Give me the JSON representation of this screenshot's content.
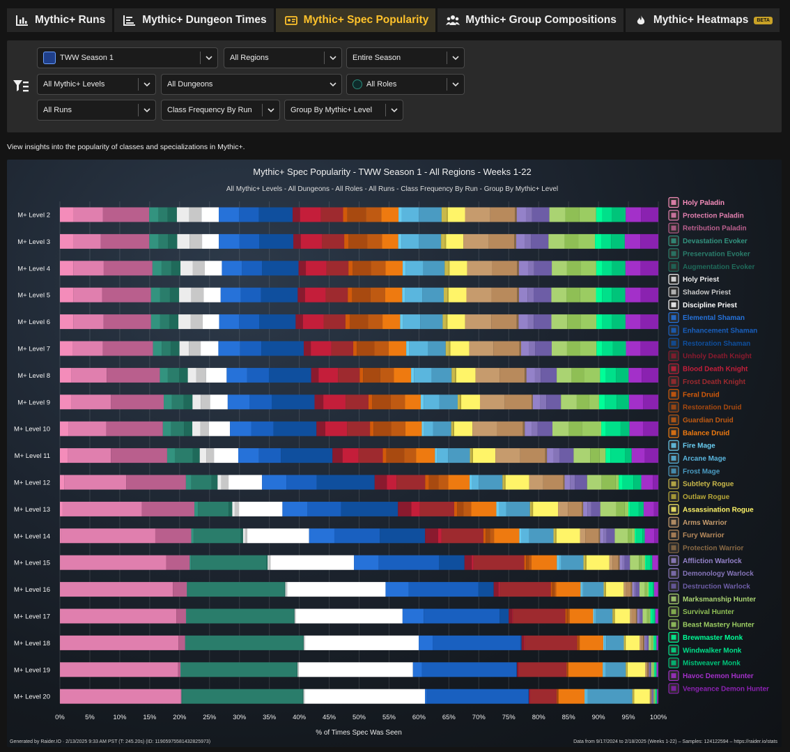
{
  "tabs": [
    {
      "label": "Mythic+ Runs",
      "icon": "bar-chart-icon",
      "active": false
    },
    {
      "label": "Mythic+ Dungeon Times",
      "icon": "list-chart-icon",
      "active": false
    },
    {
      "label": "Mythic+ Spec Popularity",
      "icon": "popularity-icon",
      "active": true
    },
    {
      "label": "Mythic+ Group Compositions",
      "icon": "group-icon",
      "active": false
    },
    {
      "label": "Mythic+ Heatmaps",
      "icon": "flame-icon",
      "active": false,
      "badge": "BETA"
    }
  ],
  "filters": {
    "season": "TWW Season 1",
    "regions": "All Regions",
    "period": "Entire Season",
    "levels": "All Mythic+ Levels",
    "dungeons": "All Dungeons",
    "roles": "All Roles",
    "runs": "All Runs",
    "frequency": "Class Frequency By Run",
    "grouping": "Group By Mythic+ Level"
  },
  "description": "View insights into the popularity of classes and specializations in Mythic+.",
  "footer": {
    "generated": "Generated by Raider.IO · 2/13/2025 9:33 AM PST (T: 245.20s) (ID: 11905975581432825973)",
    "source": "Data from 9/17/2024 to 2/18/2025 (Weeks 1-22) – Samples: 124122594 – https://raider.io/stats"
  },
  "chart_data": {
    "type": "bar",
    "orientation": "horizontal",
    "stacked": true,
    "title": "Mythic+ Spec Popularity - TWW Season 1 - All Regions - Weeks 1-22",
    "subtitle": "All Mythic+ Levels - All Dungeons - All Roles - All Runs - Class Frequency By Run - Group By Mythic+ Level",
    "xlabel": "% of Times Spec Was Seen",
    "xlim": [
      0,
      100
    ],
    "xticks": [
      "0%",
      "5%",
      "10%",
      "15%",
      "20%",
      "25%",
      "30%",
      "35%",
      "40%",
      "45%",
      "50%",
      "55%",
      "60%",
      "65%",
      "70%",
      "75%",
      "80%",
      "85%",
      "90%",
      "95%",
      "100%"
    ],
    "grid": true,
    "legend_position": "right",
    "categories": [
      "M+ Level 2",
      "M+ Level 3",
      "M+ Level 4",
      "M+ Level 5",
      "M+ Level 6",
      "M+ Level 7",
      "M+ Level 8",
      "M+ Level 9",
      "M+ Level 10",
      "M+ Level 11",
      "M+ Level 12",
      "M+ Level 13",
      "M+ Level 14",
      "M+ Level 15",
      "M+ Level 16",
      "M+ Level 17",
      "M+ Level 18",
      "M+ Level 19",
      "M+ Level 20"
    ],
    "series": [
      {
        "name": "Holy Paladin",
        "color": "#f48cba",
        "values": [
          2.2,
          2.2,
          2.2,
          2.2,
          2.2,
          2.2,
          2.0,
          2.0,
          1.5,
          1.3,
          0.7,
          0.4,
          0.2,
          0.1,
          0.1,
          0.1,
          0.1,
          0.1,
          0.1
        ]
      },
      {
        "name": "Protection Paladin",
        "color": "#e07fae",
        "values": [
          4.8,
          4.4,
          5.0,
          4.7,
          5.0,
          5.1,
          6.2,
          6.7,
          6.4,
          7.3,
          10.2,
          13.0,
          16.0,
          17.5,
          18.5,
          19.2,
          19.5,
          19.9,
          19.9
        ]
      },
      {
        "name": "Retribution Paladin",
        "color": "#b95f8d",
        "values": [
          7.5,
          7.8,
          8.0,
          8.0,
          7.8,
          8.5,
          9.3,
          9.0,
          9.6,
          9.5,
          9.8,
          8.6,
          6.1,
          3.9,
          2.3,
          1.6,
          1.1,
          0.4,
          0.1
        ]
      },
      {
        "name": "Devastation Evoker",
        "color": "#33937f",
        "values": [
          1.5,
          1.5,
          1.5,
          1.5,
          1.5,
          1.5,
          1.4,
          1.4,
          1.4,
          1.3,
          0.9,
          0.6,
          0.4,
          0.2,
          0.1,
          0.1,
          0.1,
          0.1,
          0.1
        ]
      },
      {
        "name": "Preservation Evoker",
        "color": "#2a7d6b",
        "values": [
          1.5,
          1.5,
          1.6,
          1.6,
          1.5,
          1.5,
          2.0,
          2.0,
          2.2,
          3.0,
          3.3,
          5.0,
          8.0,
          12.5,
          16.0,
          17.8,
          19.4,
          19.6,
          20.0
        ]
      },
      {
        "name": "Augmentation Evoker",
        "color": "#1f6a5a",
        "values": [
          1.5,
          1.5,
          1.5,
          1.5,
          1.5,
          1.5,
          1.5,
          1.5,
          1.4,
          1.2,
          1.0,
          0.6,
          0.4,
          0.2,
          0.1,
          0.1,
          0.1,
          0.1,
          0.1
        ]
      },
      {
        "name": "Holy Priest",
        "color": "#ececec",
        "values": [
          2.0,
          2.0,
          2.0,
          2.0,
          2.0,
          1.6,
          1.5,
          1.4,
          1.4,
          1.1,
          0.6,
          0.4,
          0.3,
          0.2,
          0.1,
          0.1,
          0.1,
          0.1,
          0.1
        ]
      },
      {
        "name": "Shadow Priest",
        "color": "#c8c8c8",
        "values": [
          2.0,
          2.0,
          2.0,
          2.0,
          2.0,
          2.0,
          1.7,
          1.6,
          1.4,
          1.3,
          1.2,
          0.7,
          0.4,
          0.3,
          0.2,
          0.1,
          0.1,
          0.1,
          0.1
        ]
      },
      {
        "name": "Discipline Priest",
        "color": "#ffffff",
        "values": [
          2.8,
          2.7,
          2.8,
          2.8,
          2.7,
          3.0,
          3.6,
          3.0,
          3.6,
          4.1,
          5.5,
          7.1,
          10.5,
          13.8,
          16.2,
          17.7,
          18.8,
          19.3,
          19.9
        ]
      },
      {
        "name": "Elemental Shaman",
        "color": "#2672d9",
        "values": [
          3.3,
          3.3,
          3.3,
          3.3,
          3.3,
          3.7,
          3.6,
          3.7,
          3.6,
          3.5,
          4.0,
          4.1,
          4.3,
          4.1,
          3.8,
          3.5,
          2.3,
          1.5,
          0.3
        ]
      },
      {
        "name": "Enhancement Shaman",
        "color": "#1960c0",
        "values": [
          3.2,
          3.2,
          3.3,
          3.3,
          3.3,
          3.6,
          3.8,
          3.8,
          3.8,
          3.7,
          5.0,
          5.5,
          7.7,
          10.0,
          11.5,
          12.6,
          14.5,
          16.0,
          16.8
        ]
      },
      {
        "name": "Restoration Shaman",
        "color": "#0f4f9e",
        "values": [
          5.5,
          5.5,
          6.0,
          6.0,
          6.0,
          7.2,
          7.4,
          7.3,
          7.3,
          8.7,
          9.5,
          9.3,
          7.7,
          4.2,
          2.5,
          1.5,
          0.2,
          0.1,
          0.1
        ]
      },
      {
        "name": "Unholy Death Knight",
        "color": "#8a1a2e",
        "values": [
          1.2,
          1.2,
          1.2,
          1.2,
          1.2,
          1.2,
          1.3,
          1.5,
          1.5,
          1.7,
          2.0,
          2.2,
          2.2,
          1.2,
          0.8,
          0.6,
          0.4,
          0.2,
          0.1
        ]
      },
      {
        "name": "Blood Death Knight",
        "color": "#c41e3a",
        "values": [
          3.4,
          3.4,
          3.4,
          3.4,
          3.4,
          3.5,
          3.4,
          3.8,
          3.7,
          2.7,
          1.6,
          1.4,
          0.6,
          0.3,
          0.2,
          0.1,
          0.1,
          0.1,
          0.1
        ]
      },
      {
        "name": "Frost Death Knight",
        "color": "#9e2a2f",
        "values": [
          3.6,
          3.6,
          3.6,
          3.6,
          3.6,
          3.7,
          3.8,
          3.9,
          3.9,
          4.1,
          4.7,
          5.6,
          7.1,
          8.4,
          8.4,
          8.7,
          8.7,
          8.1,
          4.4
        ]
      },
      {
        "name": "Feral Druid",
        "color": "#d25a0a",
        "values": [
          0.7,
          0.7,
          0.7,
          0.7,
          0.7,
          0.6,
          0.6,
          0.6,
          0.6,
          0.6,
          0.6,
          0.5,
          0.4,
          0.3,
          0.2,
          0.2,
          0.1,
          0.1,
          0.1
        ]
      },
      {
        "name": "Restoration Druid",
        "color": "#a84a10",
        "values": [
          3.0,
          3.0,
          3.0,
          3.0,
          3.0,
          3.0,
          3.0,
          3.2,
          3.0,
          3.0,
          1.6,
          1.0,
          0.7,
          0.5,
          0.4,
          0.3,
          0.2,
          0.1,
          0.1
        ]
      },
      {
        "name": "Guardian Druid",
        "color": "#bf5a12",
        "values": [
          2.5,
          2.4,
          2.4,
          2.4,
          2.4,
          2.4,
          2.4,
          2.4,
          2.4,
          2.0,
          1.6,
          1.3,
          0.7,
          0.4,
          0.3,
          0.2,
          0.1,
          0.1,
          0.1
        ]
      },
      {
        "name": "Balance Druid",
        "color": "#ee7a10",
        "values": [
          2.8,
          2.6,
          2.8,
          2.8,
          2.9,
          3.0,
          3.0,
          2.7,
          2.8,
          3.2,
          3.5,
          4.1,
          4.3,
          4.2,
          4.0,
          3.9,
          3.9,
          5.8,
          4.3
        ]
      },
      {
        "name": "Fire Mage",
        "color": "#69ccf0",
        "values": [
          0.5,
          0.5,
          0.5,
          0.5,
          0.5,
          0.5,
          0.5,
          0.5,
          0.4,
          0.4,
          0.4,
          0.4,
          0.3,
          0.3,
          0.2,
          0.2,
          0.2,
          0.2,
          0.2
        ]
      },
      {
        "name": "Arcane Mage",
        "color": "#5ab6de",
        "values": [
          2.8,
          2.8,
          2.9,
          2.8,
          2.8,
          3.2,
          3.1,
          2.7,
          1.5,
          1.8,
          1.1,
          1.2,
          1.4,
          0.4,
          0.3,
          0.3,
          0.3,
          0.3,
          0.3
        ]
      },
      {
        "name": "Frost Mage",
        "color": "#4a9bc2",
        "values": [
          3.7,
          3.6,
          3.5,
          3.5,
          3.7,
          3.0,
          3.5,
          3.1,
          3.1,
          3.7,
          3.9,
          3.9,
          4.1,
          3.7,
          3.3,
          2.7,
          2.9,
          3.4,
          7.4
        ]
      },
      {
        "name": "Subtlety Rogue",
        "color": "#c9b84a",
        "values": [
          0.8,
          0.6,
          0.6,
          0.6,
          0.6,
          0.6,
          0.6,
          0.4,
          0.3,
          0.3,
          0.3,
          0.3,
          0.3,
          0.3,
          0.2,
          0.2,
          0.2,
          0.2,
          0.2
        ]
      },
      {
        "name": "Outlaw Rogue",
        "color": "#b8a838",
        "values": [
          0.2,
          0.2,
          0.2,
          0.2,
          0.2,
          0.2,
          0.2,
          0.2,
          0.2,
          0.2,
          0.2,
          0.2,
          0.2,
          0.2,
          0.2,
          0.2,
          0.1,
          0.1,
          0.1
        ]
      },
      {
        "name": "Assassination Rogue",
        "color": "#fff468",
        "values": [
          2.8,
          2.8,
          2.9,
          2.9,
          2.9,
          3.2,
          3.4,
          3.2,
          3.1,
          3.8,
          3.9,
          4.1,
          4.0,
          3.8,
          2.9,
          2.5,
          2.3,
          3.0,
          2.6
        ]
      },
      {
        "name": "Arms Warrior",
        "color": "#c69b6d",
        "values": [
          4.1,
          4.1,
          4.1,
          4.1,
          4.3,
          4.1,
          4.2,
          4.2,
          4.2,
          4.2,
          2.3,
          1.6,
          0.9,
          0.5,
          0.4,
          0.3,
          0.3,
          0.2,
          0.1
        ]
      },
      {
        "name": "Fury Warrior",
        "color": "#b88a5c",
        "values": [
          4.0,
          4.1,
          4.1,
          4.2,
          4.2,
          4.4,
          4.4,
          4.6,
          4.4,
          4.2,
          3.3,
          2.3,
          2.3,
          1.0,
          0.8,
          0.7,
          0.3,
          0.2,
          0.1
        ]
      },
      {
        "name": "Protection Warrior",
        "color": "#8a6a45",
        "values": [
          0.3,
          0.3,
          0.3,
          0.3,
          0.3,
          0.3,
          0.3,
          0.2,
          0.3,
          0.3,
          0.2,
          0.2,
          0.2,
          0.2,
          0.2,
          0.2,
          0.2,
          0.2,
          0.1
        ]
      },
      {
        "name": "Affliction Warlock",
        "color": "#9482c9",
        "values": [
          1.5,
          1.4,
          1.5,
          1.4,
          1.5,
          1.4,
          1.5,
          1.3,
          1.2,
          1.1,
          0.9,
          0.7,
          0.6,
          0.4,
          0.3,
          0.3,
          0.2,
          0.1,
          0.1
        ]
      },
      {
        "name": "Demonology Warlock",
        "color": "#8574b8",
        "values": [
          1.0,
          1.0,
          1.0,
          1.0,
          1.0,
          1.0,
          1.0,
          1.0,
          1.0,
          1.0,
          0.8,
          0.6,
          0.5,
          0.4,
          0.3,
          0.2,
          0.2,
          0.1,
          0.1
        ]
      },
      {
        "name": "Destruction Warlock",
        "color": "#6d5da6",
        "values": [
          2.8,
          2.8,
          2.9,
          2.9,
          2.9,
          2.8,
          2.8,
          2.5,
          2.5,
          2.4,
          2.0,
          1.5,
          1.4,
          0.9,
          0.6,
          0.4,
          0.3,
          0.2,
          0.1
        ]
      },
      {
        "name": "Marksmanship Hunter",
        "color": "#aad372",
        "values": [
          2.6,
          2.6,
          2.5,
          2.5,
          2.6,
          2.6,
          2.6,
          2.7,
          2.8,
          2.8,
          2.4,
          2.6,
          2.2,
          1.5,
          0.9,
          0.7,
          0.4,
          0.2,
          0.1
        ]
      },
      {
        "name": "Survival Hunter",
        "color": "#8fbf55",
        "values": [
          2.3,
          2.2,
          2.2,
          2.2,
          2.2,
          2.2,
          2.2,
          2.1,
          2.2,
          1.6,
          2.3,
          1.4,
          0.7,
          0.4,
          0.3,
          0.3,
          0.2,
          0.1,
          0.1
        ]
      },
      {
        "name": "Beast Mastery Hunter",
        "color": "#9bcc62",
        "values": [
          2.7,
          2.7,
          2.6,
          2.6,
          2.6,
          2.8,
          2.8,
          1.7,
          3.3,
          1.0,
          0.5,
          0.6,
          0.5,
          0.6,
          0.3,
          0.3,
          0.2,
          0.2,
          0.1
        ]
      },
      {
        "name": "Brewmaster Monk",
        "color": "#00ff98",
        "values": [
          1.0,
          1.0,
          1.0,
          1.0,
          1.0,
          1.0,
          1.0,
          1.0,
          0.8,
          0.8,
          0.6,
          0.3,
          0.3,
          0.2,
          0.2,
          0.2,
          0.1,
          0.1,
          0.1
        ]
      },
      {
        "name": "Windwalker Monk",
        "color": "#00e08a",
        "values": [
          1.6,
          1.6,
          1.6,
          1.6,
          1.6,
          1.8,
          1.8,
          2.0,
          2.5,
          2.5,
          1.8,
          1.4,
          1.0,
          0.7,
          0.5,
          0.4,
          0.3,
          0.2,
          0.1
        ]
      },
      {
        "name": "Mistweaver Monk",
        "color": "#00c47a",
        "values": [
          2.2,
          2.2,
          2.2,
          2.2,
          2.2,
          2.2,
          2.2,
          2.1,
          1.5,
          1.1,
          1.3,
          0.8,
          0.4,
          0.3,
          0.2,
          0.2,
          0.1,
          0.1,
          0.1
        ]
      },
      {
        "name": "Havoc Demon Hunter",
        "color": "#a330c9",
        "values": [
          2.5,
          2.5,
          2.5,
          2.5,
          2.5,
          2.5,
          2.3,
          2.4,
          2.3,
          2.2,
          1.9,
          1.7,
          1.6,
          0.9,
          0.6,
          0.4,
          0.2,
          0.2,
          0.1
        ]
      },
      {
        "name": "Vengeance Demon Hunter",
        "color": "#8a22b0",
        "values": [
          2.8,
          2.9,
          2.9,
          2.9,
          2.9,
          3.0,
          2.9,
          2.6,
          2.6,
          2.3,
          0.9,
          0.7,
          0.7,
          0.1,
          0.1,
          0.1,
          0.1,
          0.1,
          0.1
        ]
      }
    ]
  },
  "colors": {
    "active_tab_text": "#ffc22b",
    "active_tab_bg": "#3a3524",
    "panel_bg": "#2a2a2a"
  }
}
